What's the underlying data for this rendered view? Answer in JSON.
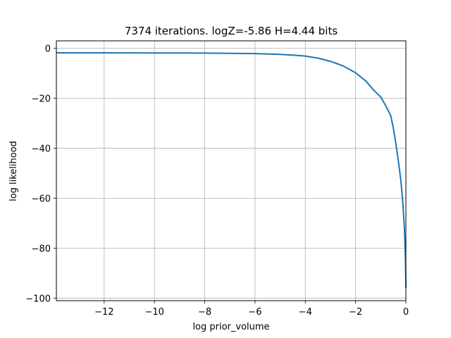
{
  "chart_data": {
    "type": "line",
    "title": "7374 iterations. logZ=-5.86 H=4.44 bits",
    "xlabel": "log prior_volume",
    "ylabel": "log likelihood",
    "xlim": [
      -13.9,
      0
    ],
    "ylim": [
      -101,
      3
    ],
    "x_ticks": [
      -12,
      -10,
      -8,
      -6,
      -4,
      -2,
      0
    ],
    "x_tick_labels": [
      "−12",
      "−10",
      "−8",
      "−6",
      "−4",
      "−2",
      "0"
    ],
    "y_ticks": [
      0,
      -20,
      -40,
      -60,
      -80,
      -100
    ],
    "y_tick_labels": [
      "0",
      "−20",
      "−40",
      "−60",
      "−80",
      "−100"
    ],
    "grid": true,
    "series": [
      {
        "color": "#1f77b4",
        "x": [
          -13.9,
          -12,
          -10,
          -8,
          -6,
          -5,
          -4.5,
          -4,
          -3.5,
          -3,
          -2.5,
          -2,
          -1.6,
          -1.3,
          -1.0,
          -0.8,
          -0.6,
          -0.5,
          -0.4,
          -0.3,
          -0.2,
          -0.12,
          -0.06,
          -0.02,
          0
        ],
        "y": [
          -1.8,
          -1.8,
          -1.85,
          -1.9,
          -2.1,
          -2.4,
          -2.7,
          -3.1,
          -3.9,
          -5.2,
          -7.0,
          -9.8,
          -13.0,
          -16.5,
          -19.5,
          -23.0,
          -27.0,
          -32.0,
          -38.0,
          -45.0,
          -53.0,
          -62.0,
          -72.0,
          -84.0,
          -96.0
        ]
      }
    ]
  }
}
